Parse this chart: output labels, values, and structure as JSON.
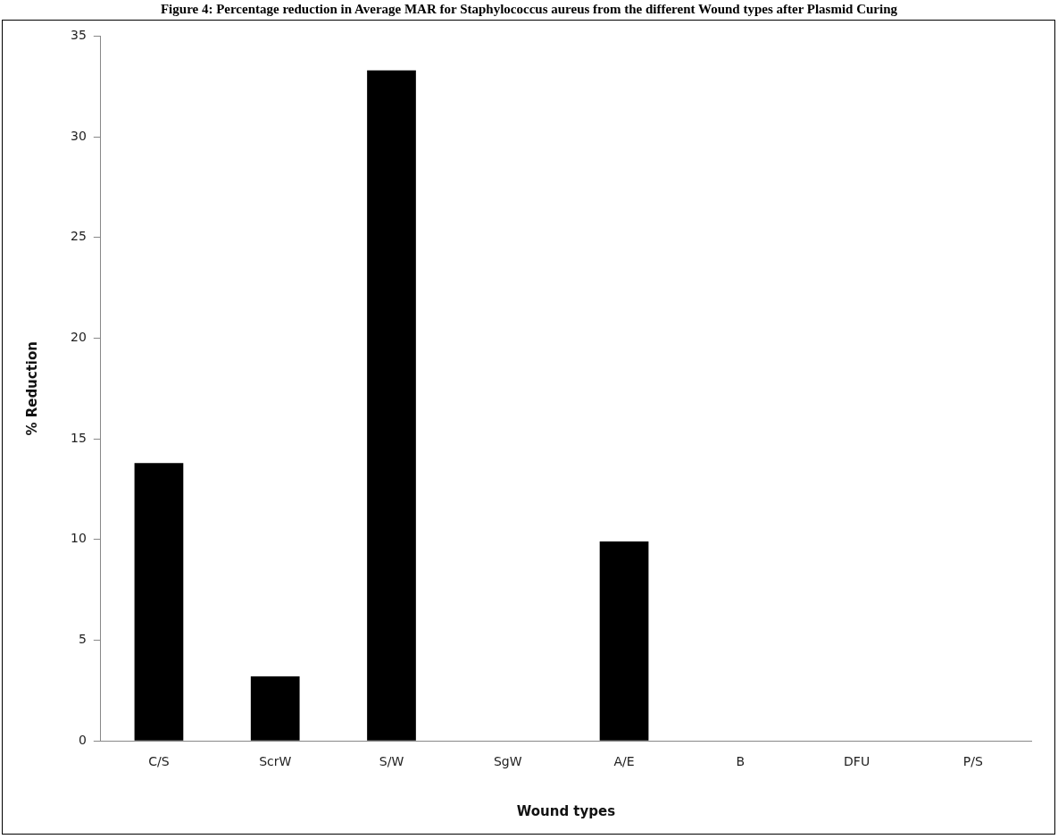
{
  "chart_data": {
    "type": "bar",
    "title": "Figure 4: Percentage reduction in Average MAR for Staphylococcus aureus from the different Wound types after Plasmid Curing",
    "xlabel": "Wound types",
    "ylabel": "% Reduction",
    "categories": [
      "C/S",
      "ScrW",
      "S/W",
      "SgW",
      "A/E",
      "B",
      "DFU",
      "P/S"
    ],
    "values": [
      13.8,
      3.2,
      33.3,
      0,
      9.9,
      0,
      0,
      0
    ],
    "color": "#000000",
    "ylim": [
      0,
      35
    ],
    "yticks": [
      0,
      5,
      10,
      15,
      20,
      25,
      30,
      35
    ],
    "grid": false,
    "legend": false
  }
}
